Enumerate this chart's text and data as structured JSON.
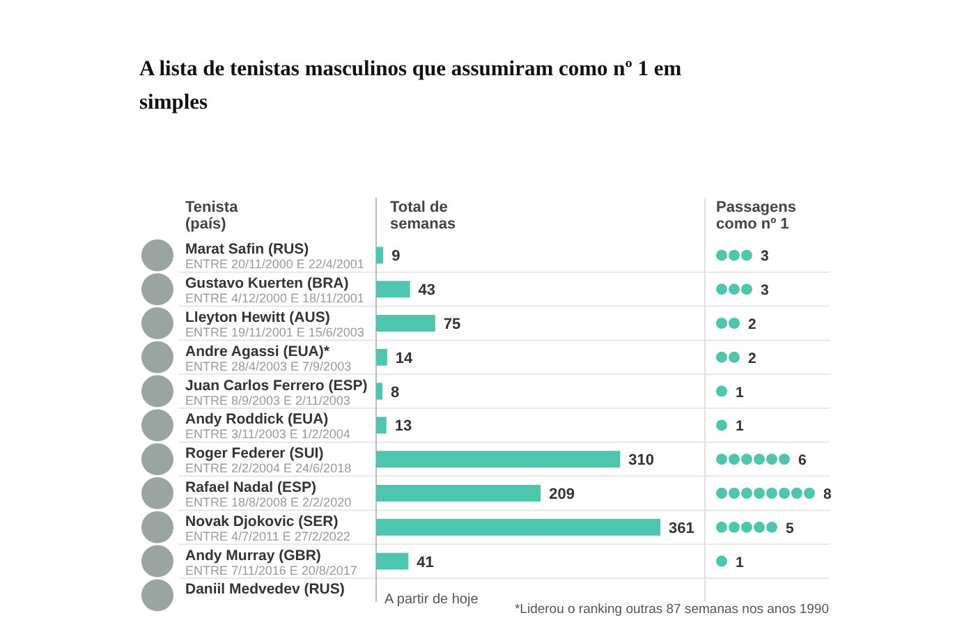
{
  "chart_data": [
    {
      "type": "bar",
      "orientation": "horizontal",
      "title": "A lista de tenistas masculinos que assumiram como nº 1 em simples",
      "ylabel": "Tenista\n(país)",
      "xlabel": "Total de\nsemanas",
      "categories": [
        "Marat Safin (RUS)\nENTRE 20/11/2000 E 22/4/2001",
        "Gustavo Kuerten (BRA)\nENTRE 4/12/2000 E 18/11/2001",
        "Lleyton Hewitt (AUS)\nENTRE 19/11/2001 E 15/6/2003",
        "Andre Agassi (EUA)*\nENTRE 28/4/2003 E 7/9/2003",
        "Juan Carlos Ferrero (ESP)\nENTRE 8/9/2003 E 2/11/2003",
        "Andy Roddick (EUA)\nENTRE 3/11/2003 E 1/2/2004",
        "Roger Federer (SUI)\nENTRE 2/2/2004 E 24/6/2018",
        "Rafael Nadal (ESP)\nENTRE 18/8/2008 E 2/2/2020",
        "Novak Djokovic (SER)\nENTRE 4/7/2011 E 27/2/2022",
        "Andy Murray (GBR)\nENTRE 7/11/2016 E 20/8/2017",
        "Daniil Medvedev (RUS)"
      ],
      "values": [
        9,
        43,
        75,
        14,
        8,
        13,
        310,
        209,
        361,
        41,
        null
      ],
      "color": "#4ec5ad",
      "data_labels": true,
      "annotations": [
        "A partir de hoje",
        "*Liderou o ranking outras 87 semanas nos anos 1990"
      ]
    },
    {
      "type": "other",
      "title": "Passagens\ncomo nº 1",
      "categories": [
        null,
        null,
        null,
        null,
        null,
        null,
        null,
        null,
        null,
        null,
        null
      ],
      "values": [
        3,
        3,
        2,
        2,
        1,
        1,
        6,
        8,
        5,
        1,
        null
      ],
      "color": "#4ec5ad",
      "data_labels": true
    }
  ]
}
